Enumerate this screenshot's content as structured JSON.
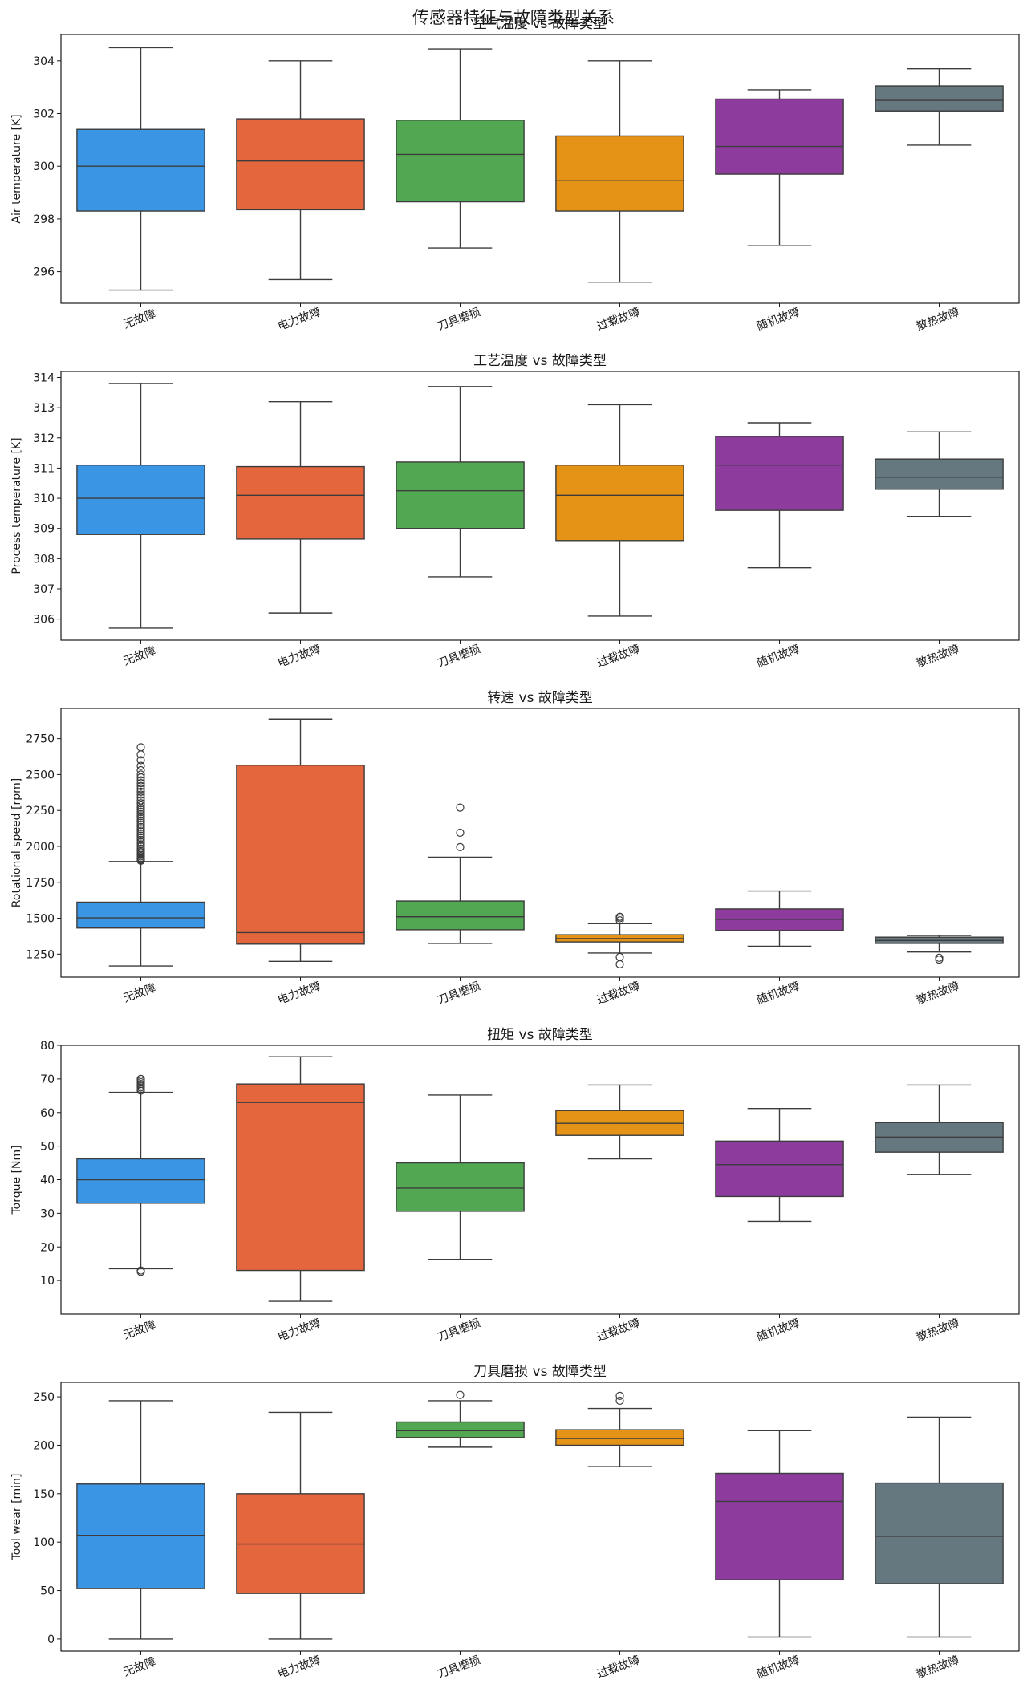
{
  "figure": {
    "title": "传感器特征与故障类型关系"
  },
  "chart_data": [
    {
      "type": "box",
      "title": "空气温度 vs 故障类型",
      "xlabel": "",
      "ylabel": "Air temperature [K]",
      "categories": [
        "无故障",
        "电力故障",
        "刀具磨损",
        "过载故障",
        "随机故障",
        "散热故障"
      ],
      "colors": [
        "#3a96e4",
        "#e4663d",
        "#52a852",
        "#e49317",
        "#8e3b9e",
        "#66787f"
      ],
      "ylim": [
        294.8,
        305.0
      ],
      "yticks": [
        296,
        298,
        300,
        302,
        304
      ],
      "boxes": [
        {
          "whislo": 295.3,
          "q1": 298.3,
          "med": 300.0,
          "q3": 301.4,
          "whishi": 304.5,
          "fliers": []
        },
        {
          "whislo": 295.7,
          "q1": 298.35,
          "med": 300.2,
          "q3": 301.8,
          "whishi": 304.0,
          "fliers": []
        },
        {
          "whislo": 296.9,
          "q1": 298.65,
          "med": 300.45,
          "q3": 301.75,
          "whishi": 304.45,
          "fliers": []
        },
        {
          "whislo": 295.6,
          "q1": 298.3,
          "med": 299.45,
          "q3": 301.15,
          "whishi": 304.0,
          "fliers": []
        },
        {
          "whislo": 297.0,
          "q1": 299.7,
          "med": 300.75,
          "q3": 302.55,
          "whishi": 302.9,
          "fliers": []
        },
        {
          "whislo": 300.8,
          "q1": 302.1,
          "med": 302.5,
          "q3": 303.05,
          "whishi": 303.7,
          "fliers": []
        }
      ]
    },
    {
      "type": "box",
      "title": "工艺温度 vs 故障类型",
      "xlabel": "",
      "ylabel": "Process temperature [K]",
      "categories": [
        "无故障",
        "电力故障",
        "刀具磨损",
        "过载故障",
        "随机故障",
        "散热故障"
      ],
      "colors": [
        "#3a96e4",
        "#e4663d",
        "#52a852",
        "#e49317",
        "#8e3b9e",
        "#66787f"
      ],
      "ylim": [
        305.3,
        314.2
      ],
      "yticks": [
        306,
        307,
        308,
        309,
        310,
        311,
        312,
        313,
        314
      ],
      "boxes": [
        {
          "whislo": 305.7,
          "q1": 308.8,
          "med": 310.0,
          "q3": 311.1,
          "whishi": 313.8,
          "fliers": []
        },
        {
          "whislo": 306.2,
          "q1": 308.65,
          "med": 310.1,
          "q3": 311.05,
          "whishi": 313.2,
          "fliers": []
        },
        {
          "whislo": 307.4,
          "q1": 309.0,
          "med": 310.25,
          "q3": 311.2,
          "whishi": 313.7,
          "fliers": []
        },
        {
          "whislo": 306.1,
          "q1": 308.6,
          "med": 310.1,
          "q3": 311.1,
          "whishi": 313.1,
          "fliers": []
        },
        {
          "whislo": 307.7,
          "q1": 309.6,
          "med": 311.1,
          "q3": 312.05,
          "whishi": 312.5,
          "fliers": []
        },
        {
          "whislo": 309.4,
          "q1": 310.3,
          "med": 310.7,
          "q3": 311.3,
          "whishi": 312.2,
          "fliers": []
        }
      ]
    },
    {
      "type": "box",
      "title": "转速 vs 故障类型",
      "xlabel": "",
      "ylabel": "Rotational speed [rpm]",
      "categories": [
        "无故障",
        "电力故障",
        "刀具磨损",
        "过载故障",
        "随机故障",
        "散热故障"
      ],
      "colors": [
        "#3a96e4",
        "#e4663d",
        "#52a852",
        "#e49317",
        "#8e3b9e",
        "#66787f"
      ],
      "ylim": [
        1090,
        2960
      ],
      "yticks": [
        1250,
        1500,
        1750,
        2000,
        2250,
        2500,
        2750
      ],
      "boxes": [
        {
          "whislo": 1168,
          "q1": 1432,
          "med": 1503,
          "q3": 1612,
          "whishi": 1895,
          "fliers": [
            1900,
            1905,
            1910,
            1915,
            1920,
            1930,
            1940,
            1950,
            1960,
            1970,
            1985,
            2000,
            2015,
            2030,
            2045,
            2060,
            2075,
            2090,
            2105,
            2120,
            2135,
            2150,
            2165,
            2180,
            2195,
            2210,
            2225,
            2240,
            2255,
            2270,
            2285,
            2300,
            2320,
            2340,
            2360,
            2380,
            2400,
            2420,
            2440,
            2460,
            2480,
            2500,
            2530,
            2560,
            2600,
            2640,
            2690
          ]
        },
        {
          "whislo": 1200,
          "q1": 1320,
          "med": 1400,
          "q3": 2565,
          "whishi": 2886,
          "fliers": []
        },
        {
          "whislo": 1325,
          "q1": 1420,
          "med": 1510,
          "q3": 1620,
          "whishi": 1925,
          "fliers": [
            1995,
            2095,
            2270
          ]
        },
        {
          "whislo": 1258,
          "q1": 1335,
          "med": 1358,
          "q3": 1385,
          "whishi": 1462,
          "fliers": [
            1180,
            1230,
            1485,
            1500,
            1510
          ]
        },
        {
          "whislo": 1305,
          "q1": 1415,
          "med": 1492,
          "q3": 1565,
          "whishi": 1690,
          "fliers": []
        },
        {
          "whislo": 1265,
          "q1": 1325,
          "med": 1345,
          "q3": 1368,
          "whishi": 1380,
          "fliers": [
            1212,
            1225
          ]
        }
      ]
    },
    {
      "type": "box",
      "title": "扭矩 vs 故障类型",
      "xlabel": "",
      "ylabel": "Torque [Nm]",
      "categories": [
        "无故障",
        "电力故障",
        "刀具磨损",
        "过载故障",
        "随机故障",
        "散热故障"
      ],
      "colors": [
        "#3a96e4",
        "#e4663d",
        "#52a852",
        "#e49317",
        "#8e3b9e",
        "#66787f"
      ],
      "ylim": [
        0,
        80
      ],
      "yticks": [
        10,
        20,
        30,
        40,
        50,
        60,
        70,
        80
      ],
      "boxes": [
        {
          "whislo": 13.5,
          "q1": 33.0,
          "med": 40.0,
          "q3": 46.2,
          "whishi": 66.0,
          "fliers": [
            12.6,
            13.0,
            66.5,
            67.0,
            67.5,
            68.0,
            68.5,
            69.0,
            69.5,
            70.0
          ]
        },
        {
          "whislo": 3.8,
          "q1": 13.0,
          "med": 63.0,
          "q3": 68.5,
          "whishi": 76.6,
          "fliers": []
        },
        {
          "whislo": 16.3,
          "q1": 30.6,
          "med": 37.5,
          "q3": 45.0,
          "whishi": 65.2,
          "fliers": []
        },
        {
          "whislo": 46.2,
          "q1": 53.2,
          "med": 56.8,
          "q3": 60.6,
          "whishi": 68.2,
          "fliers": []
        },
        {
          "whislo": 27.6,
          "q1": 35.0,
          "med": 44.5,
          "q3": 51.5,
          "whishi": 61.2,
          "fliers": []
        },
        {
          "whislo": 41.6,
          "q1": 48.2,
          "med": 52.7,
          "q3": 57.0,
          "whishi": 68.2,
          "fliers": []
        }
      ]
    },
    {
      "type": "box",
      "title": "刀具磨损 vs 故障类型",
      "xlabel": "",
      "ylabel": "Tool wear [min]",
      "categories": [
        "无故障",
        "电力故障",
        "刀具磨损",
        "过载故障",
        "随机故障",
        "散热故障"
      ],
      "colors": [
        "#3a96e4",
        "#e4663d",
        "#52a852",
        "#e49317",
        "#8e3b9e",
        "#66787f"
      ],
      "ylim": [
        -12.5,
        265
      ],
      "yticks": [
        0,
        50,
        100,
        150,
        200,
        250
      ],
      "boxes": [
        {
          "whislo": 0,
          "q1": 52,
          "med": 107,
          "q3": 160,
          "whishi": 246,
          "fliers": []
        },
        {
          "whislo": 0,
          "q1": 47,
          "med": 98,
          "q3": 150,
          "whishi": 234,
          "fliers": []
        },
        {
          "whislo": 198,
          "q1": 208,
          "med": 215,
          "q3": 224,
          "whishi": 246,
          "fliers": [
            252
          ]
        },
        {
          "whislo": 178,
          "q1": 200,
          "med": 207,
          "q3": 216,
          "whishi": 238,
          "fliers": [
            246,
            251
          ]
        },
        {
          "whislo": 2,
          "q1": 61,
          "med": 142,
          "q3": 171,
          "whishi": 215,
          "fliers": []
        },
        {
          "whislo": 2,
          "q1": 57,
          "med": 106,
          "q3": 161,
          "whishi": 229,
          "fliers": []
        }
      ]
    }
  ]
}
